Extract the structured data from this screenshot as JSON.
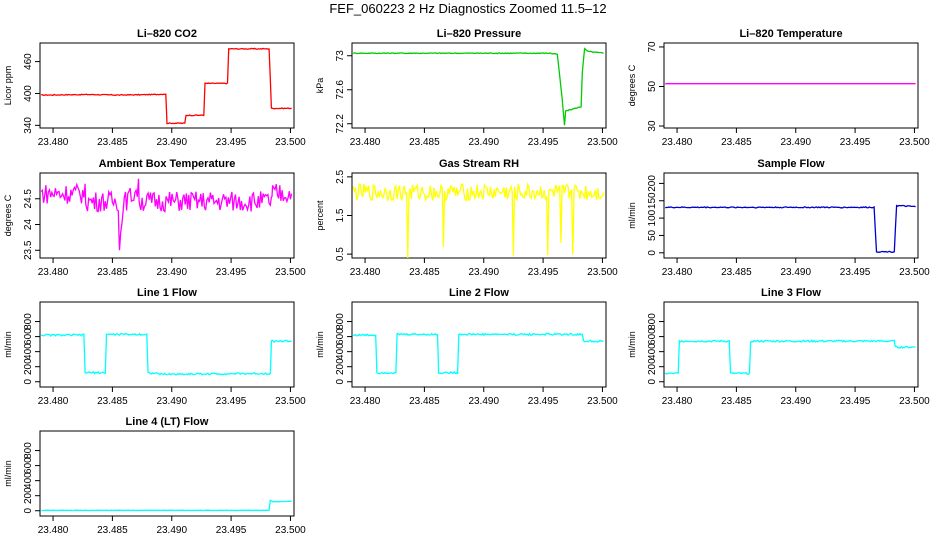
{
  "page": {
    "title": "FEF_060223  2 Hz Diagnostics Zoomed 11.5–12"
  },
  "chart_data": [
    {
      "type": "line",
      "title": "Li–820 CO2",
      "ylabel": "Licor ppm",
      "xlim": [
        23.4789,
        23.5003
      ],
      "ylim": [
        335,
        495
      ],
      "xticks": [
        "23.480",
        "23.485",
        "23.490",
        "23.495",
        "23.500"
      ],
      "yticks": [
        340,
        400,
        460
      ],
      "series": [
        {
          "color": "#ff0000",
          "noise": 0.8,
          "x": [
            23.479,
            23.483,
            23.4855,
            23.4885,
            23.4895,
            23.4896,
            23.4911,
            23.4912,
            23.4927,
            23.4928,
            23.4947,
            23.4948,
            23.4982,
            23.4984,
            23.5001
          ],
          "y": [
            397,
            398,
            397,
            398,
            399,
            344,
            344,
            359,
            359,
            419,
            419,
            484,
            484,
            372,
            372
          ]
        }
      ]
    },
    {
      "type": "line",
      "title": "Li–820 Pressure",
      "ylabel": "kPa",
      "xlim": [
        23.4789,
        23.5003
      ],
      "ylim": [
        72.15,
        73.15
      ],
      "xticks": [
        "23.480",
        "23.485",
        "23.490",
        "23.495",
        "23.500"
      ],
      "yticks": [
        72.2,
        72.6,
        73.0
      ],
      "series": [
        {
          "color": "#00cc00",
          "noise": 0.005,
          "x": [
            23.479,
            23.487,
            23.4955,
            23.4962,
            23.4966,
            23.4968,
            23.4969,
            23.4982,
            23.4983,
            23.4985,
            23.4988,
            23.5001
          ],
          "y": [
            73.03,
            73.03,
            73.03,
            73.02,
            72.5,
            72.18,
            72.35,
            72.4,
            72.8,
            73.08,
            73.05,
            73.03
          ]
        }
      ]
    },
    {
      "type": "line",
      "title": "Li–820 Temperature",
      "ylabel": "degrees C",
      "xlim": [
        23.4789,
        23.5003
      ],
      "ylim": [
        29,
        72
      ],
      "xticks": [
        "23.480",
        "23.485",
        "23.490",
        "23.495",
        "23.500"
      ],
      "yticks": [
        30,
        50,
        70
      ],
      "series": [
        {
          "color": "#ff00ff",
          "noise": 0,
          "x": [
            23.479,
            23.5001
          ],
          "y": [
            51.4,
            51.4
          ]
        }
      ]
    },
    {
      "type": "line",
      "title": "Ambient Box Temperature",
      "ylabel": "degrees C",
      "xlim": [
        23.4789,
        23.5003
      ],
      "ylim": [
        23.35,
        25.0
      ],
      "xticks": [
        "23.480",
        "23.485",
        "23.490",
        "23.495",
        "23.500"
      ],
      "yticks": [
        23.5,
        24.0,
        24.5
      ],
      "series": [
        {
          "color": "#ff00ff",
          "noise": 0.2,
          "x": [
            23.479,
            23.4827,
            23.4828,
            23.4855,
            23.4856,
            23.4859,
            23.4861,
            23.4872,
            23.4873,
            23.4984,
            23.4985,
            23.5001
          ],
          "y": [
            24.6,
            24.6,
            24.45,
            24.45,
            23.5,
            24.45,
            24.45,
            24.7,
            24.45,
            24.45,
            24.6,
            24.6
          ]
        }
      ]
    },
    {
      "type": "line",
      "title": "Gas Stream RH",
      "ylabel": "percent",
      "xlim": [
        23.4789,
        23.5003
      ],
      "ylim": [
        0.4,
        2.6
      ],
      "xticks": [
        "23.480",
        "23.485",
        "23.490",
        "23.495",
        "23.500"
      ],
      "yticks": [
        0.5,
        1.5,
        2.5
      ],
      "series": [
        {
          "color": "#ffff00",
          "noise": 0.22,
          "x": [
            23.479,
            23.4835,
            23.4836,
            23.4837,
            23.4865,
            23.4866,
            23.4867,
            23.4924,
            23.4925,
            23.4926,
            23.4953,
            23.4954,
            23.4955,
            23.4964,
            23.4965,
            23.4966,
            23.4974,
            23.4975,
            23.4976,
            23.5001
          ],
          "y": [
            2.1,
            2.1,
            0.5,
            2.1,
            2.1,
            0.9,
            2.1,
            2.1,
            0.5,
            2.1,
            2.1,
            0.5,
            2.1,
            2.1,
            0.6,
            2.1,
            2.1,
            0.7,
            2.1,
            2.1
          ]
        }
      ]
    },
    {
      "type": "line",
      "title": "Sample Flow",
      "ylabel": "ml/min",
      "xlim": [
        23.4789,
        23.5003
      ],
      "ylim": [
        -15,
        230
      ],
      "xticks": [
        "23.480",
        "23.485",
        "23.490",
        "23.495",
        "23.500"
      ],
      "yticks": [
        0,
        50,
        100,
        150,
        200
      ],
      "series": [
        {
          "color": "#0000cc",
          "noise": 1.5,
          "x": [
            23.479,
            23.4966,
            23.4968,
            23.4983,
            23.4985,
            23.5001
          ],
          "y": [
            131,
            131,
            3,
            3,
            136,
            133
          ]
        }
      ]
    },
    {
      "type": "line",
      "title": "Line 1 Flow",
      "ylabel": "ml/min",
      "xlim": [
        23.4789,
        23.5003
      ],
      "ylim": [
        -70,
        1060
      ],
      "xticks": [
        "23.480",
        "23.485",
        "23.490",
        "23.495",
        "23.500"
      ],
      "yticks": [
        0,
        200,
        400,
        600,
        800
      ],
      "series": [
        {
          "color": "#00ffff",
          "noise": 12,
          "x": [
            23.479,
            23.4826,
            23.4827,
            23.4844,
            23.4845,
            23.4879,
            23.488,
            23.4892,
            23.4983,
            23.4984,
            23.5001
          ],
          "y": [
            620,
            620,
            120,
            120,
            630,
            630,
            120,
            100,
            110,
            540,
            540
          ]
        }
      ]
    },
    {
      "type": "line",
      "title": "Line 2 Flow",
      "ylabel": "ml/min",
      "xlim": [
        23.4789,
        23.5003
      ],
      "ylim": [
        -70,
        1060
      ],
      "xticks": [
        "23.480",
        "23.485",
        "23.490",
        "23.495",
        "23.500"
      ],
      "yticks": [
        0,
        200,
        400,
        600,
        800
      ],
      "series": [
        {
          "color": "#00ffff",
          "noise": 12,
          "x": [
            23.479,
            23.4809,
            23.481,
            23.4826,
            23.4827,
            23.4861,
            23.4862,
            23.4878,
            23.4879,
            23.4983,
            23.4984,
            23.5001
          ],
          "y": [
            620,
            620,
            120,
            120,
            630,
            630,
            120,
            120,
            630,
            630,
            540,
            540
          ]
        }
      ]
    },
    {
      "type": "line",
      "title": "Line 3 Flow",
      "ylabel": "ml/min",
      "xlim": [
        23.4789,
        23.5003
      ],
      "ylim": [
        -70,
        1060
      ],
      "xticks": [
        "23.480",
        "23.485",
        "23.490",
        "23.495",
        "23.500"
      ],
      "yticks": [
        0,
        200,
        400,
        600,
        800
      ],
      "series": [
        {
          "color": "#00ffff",
          "noise": 12,
          "x": [
            23.479,
            23.4801,
            23.4802,
            23.4844,
            23.4845,
            23.4861,
            23.4862,
            23.4983,
            23.4984,
            23.5001
          ],
          "y": [
            110,
            110,
            540,
            540,
            110,
            110,
            540,
            540,
            460,
            460
          ]
        }
      ]
    },
    {
      "type": "line",
      "title": "Line 4 (LT) Flow",
      "ylabel": "ml/min",
      "xlim": [
        23.4789,
        23.5003
      ],
      "ylim": [
        -70,
        1060
      ],
      "xticks": [
        "23.480",
        "23.485",
        "23.490",
        "23.495",
        "23.500"
      ],
      "yticks": [
        0,
        200,
        400,
        600,
        800
      ],
      "series": [
        {
          "color": "#00ffff",
          "noise": 2,
          "x": [
            23.479,
            23.4982,
            23.4983,
            23.4985,
            23.5001
          ],
          "y": [
            5,
            5,
            140,
            120,
            125
          ]
        }
      ]
    }
  ]
}
